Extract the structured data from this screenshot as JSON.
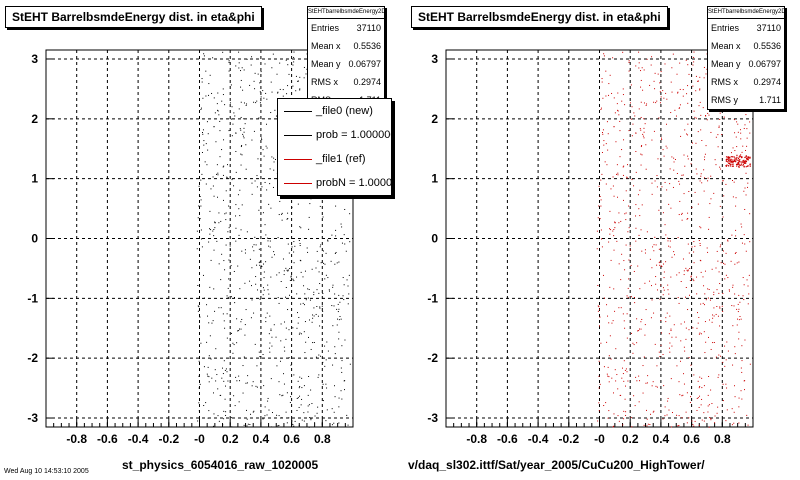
{
  "colors": {
    "file0": "#000000",
    "file1": "#cc0000",
    "dash": "#000000"
  },
  "footer_stamp": "Wed Aug 10 14:53:10 2005",
  "chart_data": [
    {
      "type": "scatter",
      "title": "StEHT BarrelbsmdeEnergy dist. in eta&phi",
      "xlabel": "st_physics_6054016_raw_1020005",
      "ylabel": "",
      "xlim": [
        -1,
        1
      ],
      "ylim": [
        -3.15,
        3.15
      ],
      "x_ticks": [
        "-0.8",
        "-0.6",
        "-0.4",
        "-0.2",
        "-0",
        "0.2",
        "0.4",
        "0.6",
        "0.8"
      ],
      "y_ticks": [
        "-3",
        "-2",
        "-1",
        "0",
        "1",
        "2",
        "3"
      ],
      "grid": true,
      "stats": {
        "name": "StEHTbarrelbsmdeEnergy2D",
        "rows": [
          {
            "label": "Entries",
            "value": "37110"
          },
          {
            "label": "Mean x",
            "value": "0.5536"
          },
          {
            "label": "Mean y",
            "value": "0.06797"
          },
          {
            "label": "RMS x",
            "value": "0.2974"
          },
          {
            "label": "RMS y",
            "value": "1.711"
          }
        ]
      },
      "legend": [
        {
          "label": "_file0 (new)",
          "color": "#000000"
        },
        {
          "label": "prob = 1.000000",
          "color": "#000000"
        },
        {
          "label": "_file1 (ref)",
          "color": "#cc0000"
        },
        {
          "label": "probN = 1.000000",
          "color": "#cc0000"
        }
      ],
      "series": [
        {
          "color": "#000000"
        }
      ]
    },
    {
      "type": "scatter",
      "title": "StEHT BarrelbsmdeEnergy dist. in eta&phi",
      "xlabel": "v/daq_sl302.ittf/Sat/year_2005/CuCu200_HighTower/",
      "ylabel": "",
      "xlim": [
        -1,
        1
      ],
      "ylim": [
        -3.15,
        3.15
      ],
      "x_ticks": [
        "-0.8",
        "-0.6",
        "-0.4",
        "-0.2",
        "-0",
        "0.2",
        "0.4",
        "0.6",
        "0.8"
      ],
      "y_ticks": [
        "-3",
        "-2",
        "-1",
        "0",
        "1",
        "2",
        "3"
      ],
      "grid": true,
      "stats": {
        "name": "StEHTbarrelbsmdeEnergy2D",
        "rows": [
          {
            "label": "Entries",
            "value": "37110"
          },
          {
            "label": "Mean x",
            "value": "0.5536"
          },
          {
            "label": "Mean y",
            "value": "0.06797"
          },
          {
            "label": "RMS x",
            "value": "0.2974"
          },
          {
            "label": "RMS y",
            "value": "1.711"
          }
        ]
      },
      "series": [
        {
          "color": "#cc0000"
        }
      ]
    }
  ]
}
